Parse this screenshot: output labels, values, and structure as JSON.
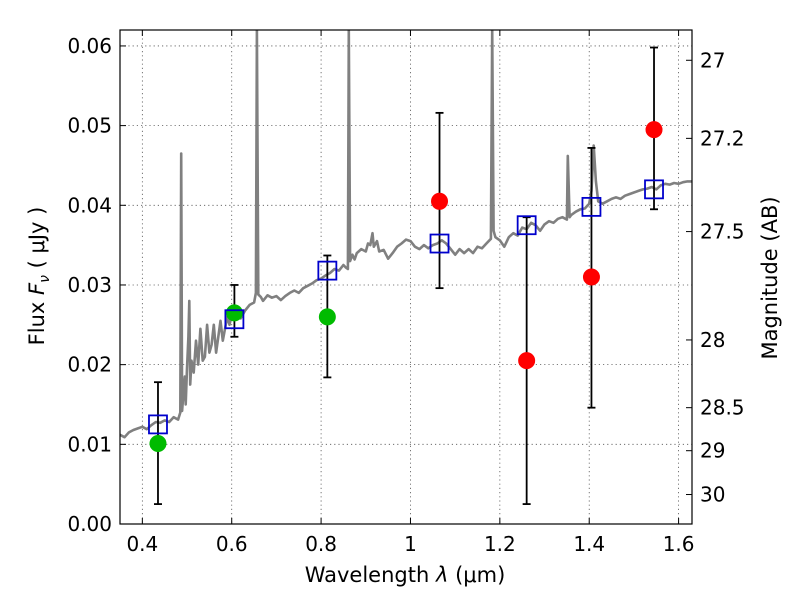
{
  "chart_data": {
    "type": "scatter",
    "xlabel": "Wavelength  λ (μm)",
    "ylabel": "Flux  F_ν  ( μJy )",
    "ylabel_parts": {
      "prefix": "Flux  ",
      "symbol": "F",
      "sub": "ν",
      "suffix": "  ( μJy )"
    },
    "xlabel_parts": {
      "prefix": "Wavelength  ",
      "symbol": "λ",
      "suffix": " (μm)"
    },
    "ylabel_right": "Magnitude (AB)",
    "xlim": [
      0.35,
      1.63
    ],
    "ylim": [
      0.0,
      0.062
    ],
    "grid": true,
    "colors": {
      "spectrum": "#808080",
      "green": "#00bb00",
      "red": "#ff0000",
      "model": "#0000cc",
      "errorbar": "#000000"
    },
    "x_ticks": [
      {
        "value": 0.4,
        "label": "0.4"
      },
      {
        "value": 0.6,
        "label": "0.6"
      },
      {
        "value": 0.8,
        "label": "0.8"
      },
      {
        "value": 1.0,
        "label": "1"
      },
      {
        "value": 1.2,
        "label": "1.2"
      },
      {
        "value": 1.4,
        "label": "1.4"
      },
      {
        "value": 1.6,
        "label": "1.6"
      }
    ],
    "y_ticks": [
      {
        "value": 0.0,
        "label": "0.00"
      },
      {
        "value": 0.01,
        "label": "0.01"
      },
      {
        "value": 0.02,
        "label": "0.02"
      },
      {
        "value": 0.03,
        "label": "0.03"
      },
      {
        "value": 0.04,
        "label": "0.04"
      },
      {
        "value": 0.05,
        "label": "0.05"
      },
      {
        "value": 0.06,
        "label": "0.06"
      }
    ],
    "mag_ticks": [
      {
        "flux": 0.0582,
        "label": "27"
      },
      {
        "flux": 0.0484,
        "label": "27.2"
      },
      {
        "flux": 0.0367,
        "label": "27.5"
      },
      {
        "flux": 0.0231,
        "label": "28"
      },
      {
        "flux": 0.0146,
        "label": "28.5"
      },
      {
        "flux": 0.0092,
        "label": "29"
      },
      {
        "flux": 0.0037,
        "label": "30"
      }
    ],
    "series": [
      {
        "marker": "circle",
        "color": "green",
        "points": [
          {
            "x": 0.435,
            "y": 0.0101
          },
          {
            "x": 0.606,
            "y": 0.0265
          },
          {
            "x": 0.814,
            "y": 0.026
          }
        ]
      },
      {
        "marker": "circle",
        "color": "red",
        "points": [
          {
            "x": 1.065,
            "y": 0.0405
          },
          {
            "x": 1.26,
            "y": 0.0205
          },
          {
            "x": 1.405,
            "y": 0.031
          },
          {
            "x": 1.545,
            "y": 0.0495
          }
        ]
      },
      {
        "marker": "square",
        "color": "model",
        "points": [
          {
            "x": 0.435,
            "y": 0.0125
          },
          {
            "x": 0.606,
            "y": 0.0257
          },
          {
            "x": 0.814,
            "y": 0.0318
          },
          {
            "x": 1.065,
            "y": 0.0352
          },
          {
            "x": 1.26,
            "y": 0.0375
          },
          {
            "x": 1.405,
            "y": 0.0398
          },
          {
            "x": 1.545,
            "y": 0.042
          }
        ]
      }
    ],
    "errorbars": [
      {
        "x": 0.435,
        "low": 0.0025,
        "high": 0.0178
      },
      {
        "x": 0.606,
        "low": 0.0235,
        "high": 0.03
      },
      {
        "x": 0.814,
        "low": 0.0184,
        "high": 0.0337
      },
      {
        "x": 1.065,
        "low": 0.0296,
        "high": 0.0516
      },
      {
        "x": 1.26,
        "low": 0.0025,
        "high": 0.0385
      },
      {
        "x": 1.405,
        "low": 0.0146,
        "high": 0.0472
      },
      {
        "x": 1.545,
        "low": 0.0395,
        "high": 0.0598
      }
    ],
    "spectrum": [
      [
        0.35,
        0.0112
      ],
      [
        0.36,
        0.0109
      ],
      [
        0.37,
        0.0115
      ],
      [
        0.38,
        0.0118
      ],
      [
        0.39,
        0.012
      ],
      [
        0.4,
        0.0122
      ],
      [
        0.41,
        0.0119
      ],
      [
        0.42,
        0.0124
      ],
      [
        0.43,
        0.0128
      ],
      [
        0.44,
        0.0127
      ],
      [
        0.45,
        0.013
      ],
      [
        0.46,
        0.0128
      ],
      [
        0.47,
        0.0134
      ],
      [
        0.48,
        0.0131
      ],
      [
        0.485,
        0.014
      ],
      [
        0.487,
        0.0465
      ],
      [
        0.489,
        0.0142
      ],
      [
        0.495,
        0.0185
      ],
      [
        0.497,
        0.015
      ],
      [
        0.5,
        0.0195
      ],
      [
        0.503,
        0.0235
      ],
      [
        0.505,
        0.028
      ],
      [
        0.507,
        0.0175
      ],
      [
        0.51,
        0.0205
      ],
      [
        0.515,
        0.019
      ],
      [
        0.52,
        0.023
      ],
      [
        0.525,
        0.02
      ],
      [
        0.53,
        0.0245
      ],
      [
        0.535,
        0.0205
      ],
      [
        0.54,
        0.021
      ],
      [
        0.545,
        0.025
      ],
      [
        0.55,
        0.0215
      ],
      [
        0.555,
        0.0225
      ],
      [
        0.56,
        0.025
      ],
      [
        0.565,
        0.0215
      ],
      [
        0.57,
        0.0235
      ],
      [
        0.575,
        0.0255
      ],
      [
        0.58,
        0.023
      ],
      [
        0.585,
        0.0245
      ],
      [
        0.59,
        0.026
      ],
      [
        0.595,
        0.025
      ],
      [
        0.6,
        0.0262
      ],
      [
        0.61,
        0.027
      ],
      [
        0.62,
        0.0258
      ],
      [
        0.63,
        0.0268
      ],
      [
        0.64,
        0.0275
      ],
      [
        0.65,
        0.0278
      ],
      [
        0.654,
        0.029
      ],
      [
        0.6563,
        0.062
      ],
      [
        0.6595,
        0.0288
      ],
      [
        0.665,
        0.0285
      ],
      [
        0.67,
        0.028
      ],
      [
        0.68,
        0.0287
      ],
      [
        0.69,
        0.0284
      ],
      [
        0.7,
        0.0286
      ],
      [
        0.71,
        0.0281
      ],
      [
        0.72,
        0.0286
      ],
      [
        0.73,
        0.029
      ],
      [
        0.74,
        0.0293
      ],
      [
        0.75,
        0.029
      ],
      [
        0.76,
        0.0296
      ],
      [
        0.77,
        0.0299
      ],
      [
        0.78,
        0.0302
      ],
      [
        0.79,
        0.0306
      ],
      [
        0.8,
        0.0308
      ],
      [
        0.81,
        0.0312
      ],
      [
        0.82,
        0.0315
      ],
      [
        0.83,
        0.032
      ],
      [
        0.84,
        0.0318
      ],
      [
        0.85,
        0.0325
      ],
      [
        0.855,
        0.0322
      ],
      [
        0.86,
        0.032
      ],
      [
        0.862,
        0.062
      ],
      [
        0.865,
        0.033
      ],
      [
        0.87,
        0.0338
      ],
      [
        0.875,
        0.0332
      ],
      [
        0.88,
        0.034
      ],
      [
        0.89,
        0.0345
      ],
      [
        0.9,
        0.0342
      ],
      [
        0.905,
        0.0352
      ],
      [
        0.91,
        0.035
      ],
      [
        0.915,
        0.0365
      ],
      [
        0.918,
        0.0348
      ],
      [
        0.925,
        0.0355
      ],
      [
        0.93,
        0.0342
      ],
      [
        0.94,
        0.0344
      ],
      [
        0.95,
        0.0333
      ],
      [
        0.96,
        0.034
      ],
      [
        0.97,
        0.0348
      ],
      [
        0.98,
        0.0352
      ],
      [
        0.99,
        0.0357
      ],
      [
        1.0,
        0.0355
      ],
      [
        1.01,
        0.0348
      ],
      [
        1.02,
        0.0345
      ],
      [
        1.03,
        0.035
      ],
      [
        1.04,
        0.0346
      ],
      [
        1.05,
        0.035
      ],
      [
        1.06,
        0.0352
      ],
      [
        1.07,
        0.0356
      ],
      [
        1.08,
        0.0352
      ],
      [
        1.09,
        0.0345
      ],
      [
        1.1,
        0.0338
      ],
      [
        1.11,
        0.0345
      ],
      [
        1.12,
        0.034
      ],
      [
        1.13,
        0.0345
      ],
      [
        1.14,
        0.034
      ],
      [
        1.15,
        0.0348
      ],
      [
        1.16,
        0.0346
      ],
      [
        1.17,
        0.0352
      ],
      [
        1.18,
        0.0358
      ],
      [
        1.183,
        0.062
      ],
      [
        1.186,
        0.0368
      ],
      [
        1.19,
        0.036
      ],
      [
        1.2,
        0.0356
      ],
      [
        1.21,
        0.0348
      ],
      [
        1.22,
        0.036
      ],
      [
        1.23,
        0.0365
      ],
      [
        1.24,
        0.0362
      ],
      [
        1.25,
        0.0372
      ],
      [
        1.26,
        0.037
      ],
      [
        1.27,
        0.0378
      ],
      [
        1.28,
        0.0375
      ],
      [
        1.29,
        0.0368
      ],
      [
        1.3,
        0.0376
      ],
      [
        1.31,
        0.038
      ],
      [
        1.32,
        0.0378
      ],
      [
        1.33,
        0.0383
      ],
      [
        1.34,
        0.0385
      ],
      [
        1.35,
        0.0382
      ],
      [
        1.352,
        0.0462
      ],
      [
        1.356,
        0.0385
      ],
      [
        1.36,
        0.0388
      ],
      [
        1.37,
        0.0392
      ],
      [
        1.38,
        0.0395
      ],
      [
        1.39,
        0.0396
      ],
      [
        1.4,
        0.0402
      ],
      [
        1.405,
        0.0418
      ],
      [
        1.41,
        0.0475
      ],
      [
        1.415,
        0.043
      ],
      [
        1.42,
        0.0405
      ],
      [
        1.43,
        0.0402
      ],
      [
        1.44,
        0.0405
      ],
      [
        1.45,
        0.0408
      ],
      [
        1.46,
        0.041
      ],
      [
        1.47,
        0.0408
      ],
      [
        1.48,
        0.0412
      ],
      [
        1.49,
        0.0414
      ],
      [
        1.5,
        0.0416
      ],
      [
        1.51,
        0.0418
      ],
      [
        1.52,
        0.042
      ],
      [
        1.53,
        0.0421
      ],
      [
        1.54,
        0.0423
      ],
      [
        1.55,
        0.042
      ],
      [
        1.56,
        0.0425
      ],
      [
        1.57,
        0.0427
      ],
      [
        1.58,
        0.0426
      ],
      [
        1.59,
        0.0428
      ],
      [
        1.6,
        0.0427
      ],
      [
        1.61,
        0.0429
      ],
      [
        1.62,
        0.043
      ],
      [
        1.63,
        0.043
      ]
    ]
  }
}
